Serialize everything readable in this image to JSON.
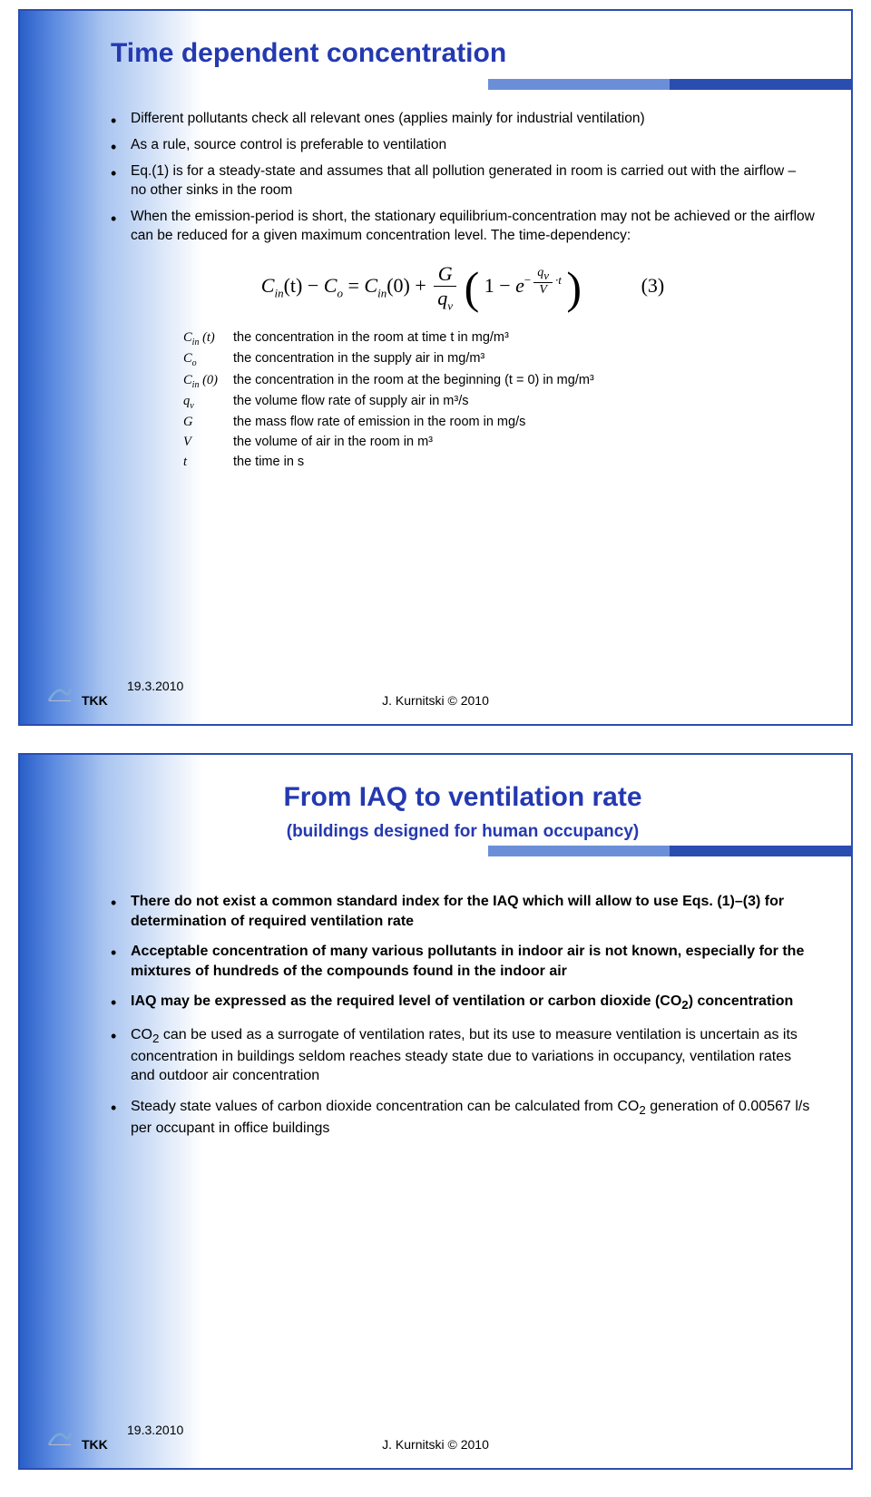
{
  "slide1": {
    "title": "Time dependent concentration",
    "bullets": [
      "Different pollutants check all relevant ones (applies mainly for industrial ventilation)",
      "As a rule, source control is preferable to ventilation",
      "Eq.(1) is for a steady-state and assumes that all pollution generated in room is carried out with the airflow – no other sinks in the room",
      "When the emission-period is short, the stationary equilibrium-concentration may not be achieved or the airflow can be reduced for a given maximum concentration level. The time-dependency:"
    ],
    "eq": {
      "lhs_a": "C",
      "lhs_a_sub": "in",
      "lhs_t": "(t)",
      "minus": "−",
      "lhs_b": "C",
      "lhs_b_sub": "o",
      "eq": "=",
      "rhs_a": "C",
      "rhs_a_sub": "in",
      "rhs_0": "(0)",
      "plus": "+",
      "frac_num": "G",
      "frac_den_a": "q",
      "frac_den_sub": "v",
      "one": "1",
      "minus2": "−",
      "e": "e",
      "exp_num_a": "q",
      "exp_num_sub": "v",
      "exp_den": "V",
      "exp_t": "·t",
      "number": "(3)"
    },
    "defs": [
      {
        "sym": "C<sub>in</sub> (t)",
        "txt": "the concentration in the room at time t in mg/m³"
      },
      {
        "sym": "C<sub>o</sub>",
        "txt": "the concentration in the supply air in mg/m³"
      },
      {
        "sym": "C<sub>in</sub> (0)",
        "txt": "the concentration in the room at the beginning (t = 0) in mg/m³"
      },
      {
        "sym": "q<sub>v</sub>",
        "txt": "the volume flow rate of supply air in m³/s"
      },
      {
        "sym": "G",
        "txt": "the mass flow rate of emission in the room in mg/s"
      },
      {
        "sym": "V",
        "txt": "the volume of air in the room in m³"
      },
      {
        "sym": "t",
        "txt": "the time in s"
      }
    ]
  },
  "slide2": {
    "title": "From IAQ to ventilation rate",
    "subtitle": "(buildings designed for human occupancy)",
    "bullets": [
      "<b>There do not exist a common standard index for the IAQ which will allow to use Eqs. (1)–(3) for determination of required ventilation rate</b>",
      "<b>Acceptable concentration of many various pollutants in indoor air is not known, especially for the mixtures of hundreds of the compounds found in the indoor air</b>",
      "<b>IAQ may be expressed as the required level of ventilation or carbon dioxide (CO<sub>2</sub>) concentration</b>",
      "CO<sub>2</sub> can be used as a surrogate of ventilation rates, but its use to measure ventilation is uncertain as its concentration in buildings seldom reaches steady state due to variations in occupancy, ventilation rates and outdoor air concentration",
      "Steady state values of carbon dioxide concentration can be calculated from CO<sub>2</sub> generation of 0.00567 l/s per occupant in office buildings"
    ]
  },
  "footer": {
    "date": "19.3.2010",
    "tkk": "TKK",
    "copyright": "J. Kurnitski © 2010"
  },
  "colors": {
    "slide_border": "#2a4db0",
    "title_color": "#2439b0",
    "bar_dark": "#2a4db0",
    "bar_light": "#6a8fd8",
    "gradient_start": "#2a5fc9"
  }
}
